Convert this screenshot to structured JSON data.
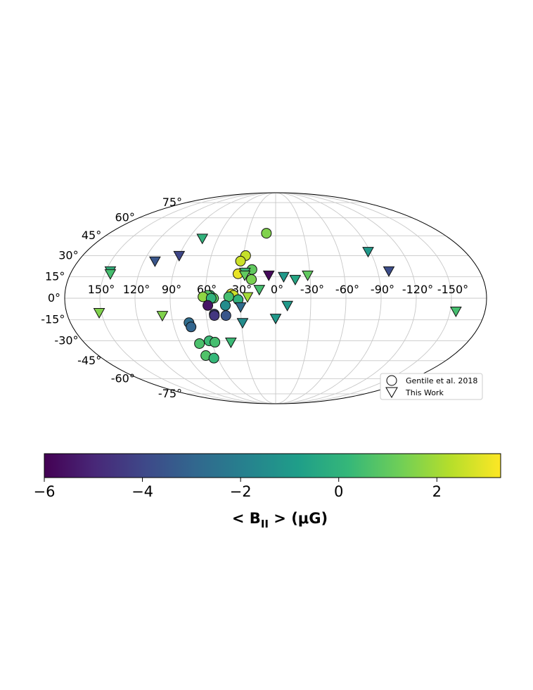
{
  "chart_data": [
    {
      "type": "scatter",
      "projection": "mollweide",
      "grid": true,
      "xlabel": "",
      "ylabel": "",
      "longitude_tick_labels": [
        "150°",
        "120°",
        "90°",
        "60°",
        "30°",
        "0°",
        "-30°",
        "-60°",
        "-90°",
        "-120°",
        "-150°"
      ],
      "longitude_tick_values": [
        150,
        120,
        90,
        60,
        30,
        0,
        -30,
        -60,
        -90,
        -120,
        -150
      ],
      "latitude_tick_labels": [
        "75°",
        "60°",
        "45°",
        "30°",
        "15°",
        "0°",
        "-15°",
        "-30°",
        "-45°",
        "-60°",
        "-75°"
      ],
      "latitude_tick_values": [
        75,
        60,
        45,
        30,
        15,
        0,
        -15,
        -30,
        -45,
        -60,
        -75
      ],
      "color_label": "< B_II > (μG)",
      "legend_position": "lower-right",
      "series": [
        {
          "name": "Gentile et al. 2018",
          "marker": "circle",
          "points": [
            {
              "lon": 10,
              "lat": 47,
              "value": 1.5
            },
            {
              "lon": 28,
              "lat": 30,
              "value": 2.5
            },
            {
              "lon": 32,
              "lat": 26,
              "value": 2.6
            },
            {
              "lon": 33,
              "lat": 17,
              "value": 3.0
            },
            {
              "lon": 21,
              "lat": 20,
              "value": 1.0
            },
            {
              "lon": 21,
              "lat": 13,
              "value": 1.4
            },
            {
              "lon": 38,
              "lat": 3,
              "value": 3.0
            },
            {
              "lon": 36,
              "lat": 2,
              "value": 2.6
            },
            {
              "lon": 40,
              "lat": 1,
              "value": 0.5
            },
            {
              "lon": 32,
              "lat": -1,
              "value": 0.0
            },
            {
              "lon": 56,
              "lat": 2,
              "value": 0.3
            },
            {
              "lon": 58,
              "lat": 2,
              "value": 0.8
            },
            {
              "lon": 62,
              "lat": 1,
              "value": 1.7
            },
            {
              "lon": 53,
              "lat": 0,
              "value": 1.0
            },
            {
              "lon": 55,
              "lat": 0,
              "value": 0.0
            },
            {
              "lon": 43,
              "lat": -5,
              "value": -1.5
            },
            {
              "lon": 58,
              "lat": -5,
              "value": -5.5
            },
            {
              "lon": 53,
              "lat": -11,
              "value": -4.0
            },
            {
              "lon": 53,
              "lat": -12,
              "value": -4.5
            },
            {
              "lon": 43,
              "lat": -12,
              "value": -3.5
            },
            {
              "lon": 76,
              "lat": -17,
              "value": -2.7
            },
            {
              "lon": 75,
              "lat": -20,
              "value": -3.0
            },
            {
              "lon": 62,
              "lat": -30,
              "value": 0.3
            },
            {
              "lon": 57,
              "lat": -31,
              "value": 0.5
            },
            {
              "lon": 72,
              "lat": -32,
              "value": 0.6
            },
            {
              "lon": 71,
              "lat": -41,
              "value": 0.7
            },
            {
              "lon": 64,
              "lat": -43,
              "value": 0.2
            }
          ]
        },
        {
          "name": "This Work",
          "marker": "triangle-down",
          "points": [
            {
              "lon": 76,
              "lat": 43,
              "value": 0.0
            },
            {
              "lon": 110,
              "lat": 26,
              "value": -3.5
            },
            {
              "lon": 90,
              "lat": 30,
              "value": -4.0
            },
            {
              "lon": 146,
              "lat": 19,
              "value": 0.0
            },
            {
              "lon": 145,
              "lat": 17,
              "value": 0.5
            },
            {
              "lon": 27,
              "lat": 18,
              "value": 0.3
            },
            {
              "lon": 27,
              "lat": 16,
              "value": 1.0
            },
            {
              "lon": 6,
              "lat": 16,
              "value": -5.8
            },
            {
              "lon": -7,
              "lat": 15,
              "value": -1.0
            },
            {
              "lon": -17,
              "lat": 13,
              "value": -0.5
            },
            {
              "lon": -28,
              "lat": 16,
              "value": 1.0
            },
            {
              "lon": 14,
              "lat": 6,
              "value": 0.5
            },
            {
              "lon": 24,
              "lat": 1,
              "value": 2.0
            },
            {
              "lon": 30,
              "lat": -6,
              "value": -2.8
            },
            {
              "lon": -10,
              "lat": -5,
              "value": -1.0
            },
            {
              "lon": 0,
              "lat": -14,
              "value": -1.0
            },
            {
              "lon": 29,
              "lat": -17,
              "value": -1.5
            },
            {
              "lon": 152,
              "lat": -10,
              "value": 1.5
            },
            {
              "lon": 98,
              "lat": -12,
              "value": 1.5
            },
            {
              "lon": 42,
              "lat": -31,
              "value": 0.3
            },
            {
              "lon": -88,
              "lat": 33,
              "value": -1.0
            },
            {
              "lon": -100,
              "lat": 19,
              "value": -3.8
            },
            {
              "lon": -155,
              "lat": -9,
              "value": 0.5
            }
          ]
        }
      ]
    },
    {
      "type": "heatmap",
      "role": "colorbar",
      "colormap": "viridis",
      "range": [
        -6,
        3.3
      ],
      "tick_values": [
        -6,
        -4,
        -2,
        0,
        2
      ],
      "tick_labels": [
        "−6",
        "−4",
        "−2",
        "0",
        "2"
      ],
      "label_prefix": "< B",
      "label_subscript": "II",
      "label_suffix": " > (μG)"
    }
  ],
  "colors": {
    "grid": "#c8c8c8",
    "outline": "#000000",
    "marker_edge": "#111111",
    "viridis_stops": [
      "#440154",
      "#482878",
      "#3e4989",
      "#31688e",
      "#26828e",
      "#1f9e89",
      "#35b779",
      "#6ece58",
      "#b5de2b",
      "#fde725"
    ]
  }
}
